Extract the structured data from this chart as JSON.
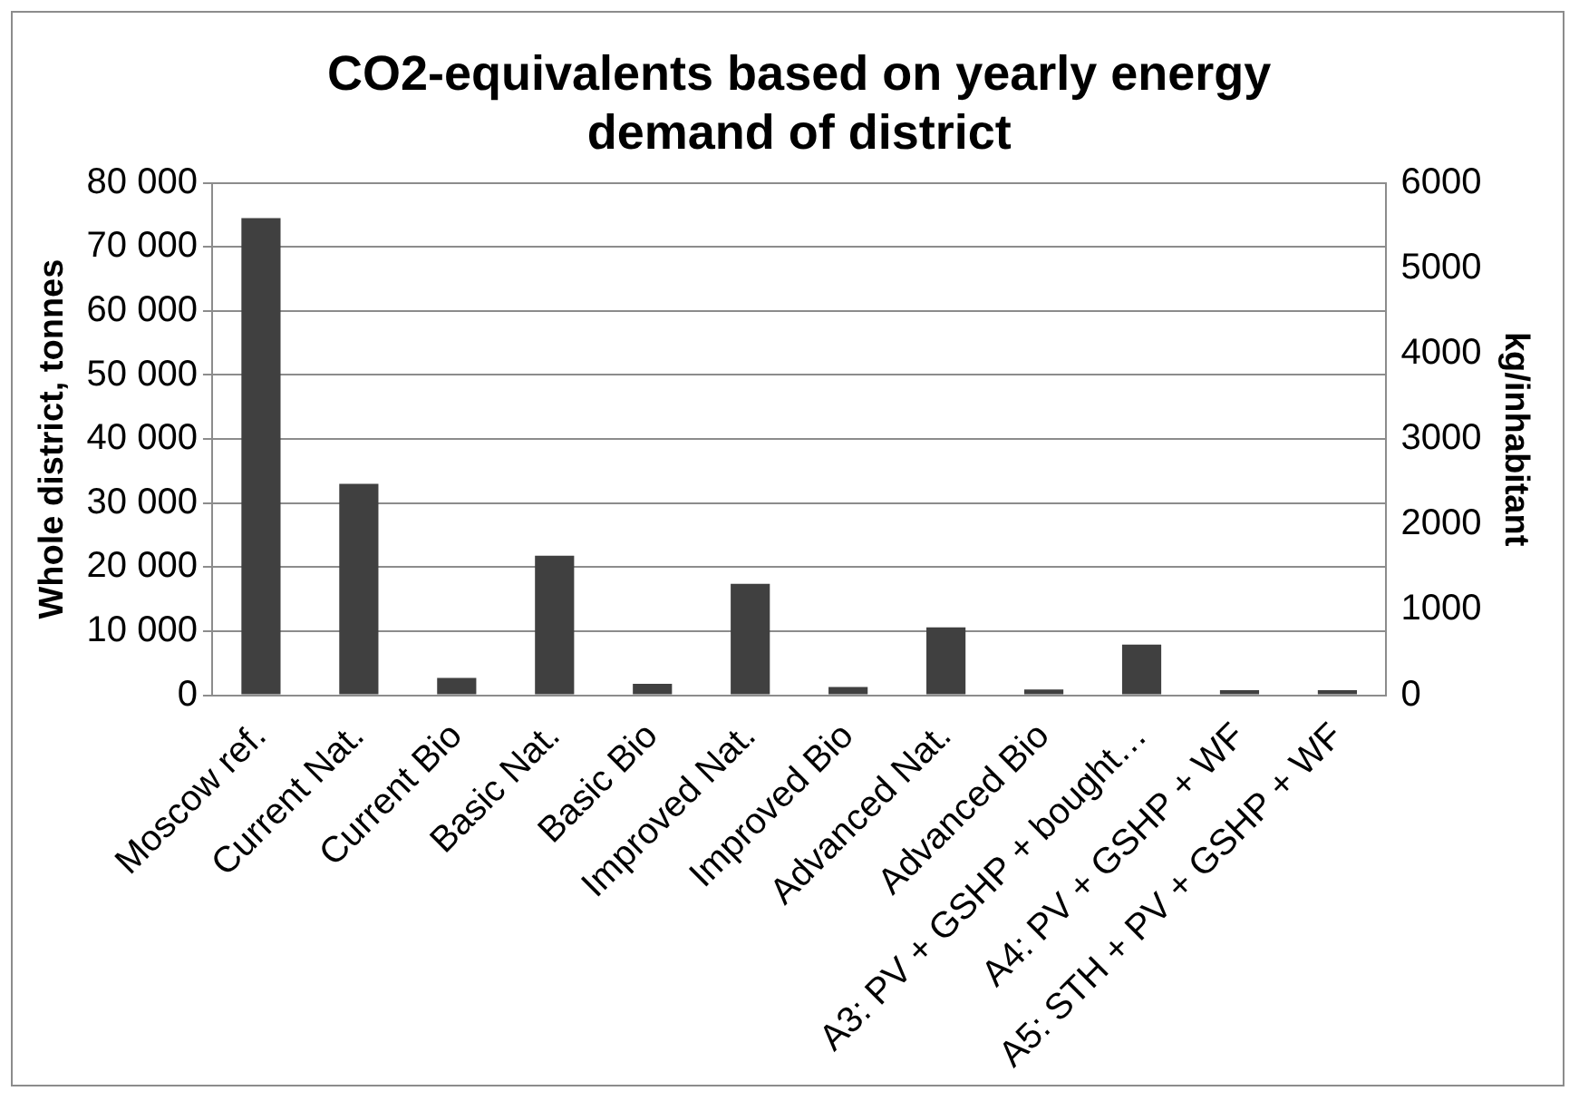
{
  "chart_data": {
    "type": "bar",
    "title": "CO2-equivalents based on yearly energy demand of district",
    "ylabel": "Whole district, tonnes",
    "y2label": "kg/inhabitant",
    "categories": [
      "Moscow ref.",
      "Current Nat.",
      "Current Bio",
      "Basic Nat.",
      "Basic Bio",
      "Improved Nat.",
      "Improved Bio",
      "Advanced Nat.",
      "Advanced Bio",
      "A3: PV + GSHP + bought…",
      "A4: PV + GSHP + WF",
      "A5: STH + PV + GSHP + WF"
    ],
    "series": [
      {
        "color": "#404040",
        "values": [
          74500,
          33000,
          2700,
          21800,
          1800,
          17400,
          1300,
          10600,
          900,
          7900,
          800,
          800
        ]
      }
    ],
    "ylim": [
      0,
      80000
    ],
    "yticks": [
      {
        "value": 0,
        "label": "0"
      },
      {
        "value": 10000,
        "label": "10 000"
      },
      {
        "value": 20000,
        "label": "20 000"
      },
      {
        "value": 30000,
        "label": "30 000"
      },
      {
        "value": 40000,
        "label": "40 000"
      },
      {
        "value": 50000,
        "label": "50 000"
      },
      {
        "value": 60000,
        "label": "60 000"
      },
      {
        "value": 70000,
        "label": "70 000"
      },
      {
        "value": 80000,
        "label": "80 000"
      }
    ],
    "y2lim": [
      0,
      6000
    ],
    "y2ticks": [
      0,
      1000,
      2000,
      3000,
      4000,
      5000,
      6000
    ],
    "grid": "y",
    "legend": false
  }
}
